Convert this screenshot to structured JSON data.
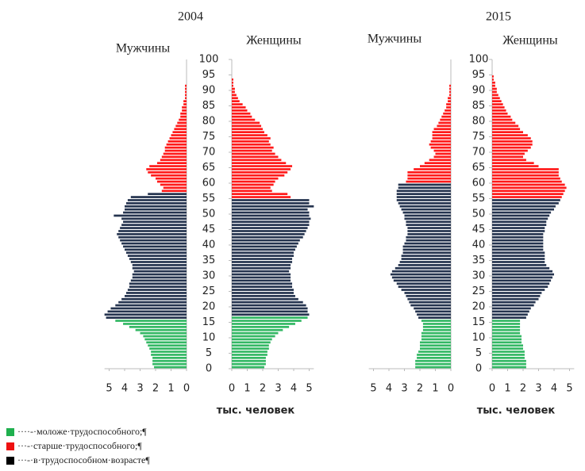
{
  "legend": [
    {
      "label": "····-·моложе·трудоспособного;¶",
      "color": "#1fb04e"
    },
    {
      "label": "···-·старше·трудоспособного;¶",
      "color": "#ee1111"
    },
    {
      "label": "···-·в·трудоспособном·возрасте¶",
      "color": "#000000"
    }
  ],
  "chart_data": [
    {
      "type": "pyramid",
      "title": "2004",
      "xlabel": "тыс. человек",
      "colors": [
        "#33b864",
        "#ff1a1a",
        "#25344f"
      ],
      "ylim": [
        0,
        100
      ],
      "yticks": [
        0,
        5,
        10,
        15,
        20,
        25,
        30,
        35,
        40,
        45,
        50,
        55,
        60,
        65,
        70,
        75,
        80,
        85,
        90,
        95,
        100
      ],
      "xlim": [
        0,
        5.3
      ],
      "xticks": [
        0,
        1,
        2,
        3,
        4,
        5
      ],
      "ages": [
        0,
        1,
        2,
        3,
        4,
        5,
        6,
        7,
        8,
        9,
        10,
        11,
        12,
        13,
        14,
        15,
        16,
        17,
        18,
        19,
        20,
        21,
        22,
        23,
        24,
        25,
        26,
        27,
        28,
        29,
        30,
        31,
        32,
        33,
        34,
        35,
        36,
        37,
        38,
        39,
        40,
        41,
        42,
        43,
        44,
        45,
        46,
        47,
        48,
        49,
        50,
        51,
        52,
        53,
        54,
        55,
        56,
        57,
        58,
        59,
        60,
        61,
        62,
        63,
        64,
        65,
        66,
        67,
        68,
        69,
        70,
        71,
        72,
        73,
        74,
        75,
        76,
        77,
        78,
        79,
        80,
        81,
        82,
        83,
        84,
        85,
        86,
        87,
        88,
        89,
        90,
        91,
        92,
        93,
        94
      ],
      "series": [
        {
          "name": "Мужчины",
          "working_age": [
            16,
            56
          ],
          "values": [
            2.1,
            2.2,
            2.2,
            2.2,
            2.3,
            2.3,
            2.4,
            2.5,
            2.6,
            2.7,
            2.8,
            3.0,
            3.3,
            3.7,
            4.1,
            4.6,
            5.2,
            5.3,
            5.1,
            4.9,
            4.6,
            4.4,
            4.2,
            4.0,
            3.9,
            3.8,
            3.7,
            3.7,
            3.6,
            3.5,
            3.5,
            3.4,
            3.5,
            3.5,
            3.6,
            3.7,
            3.8,
            3.9,
            4.0,
            4.1,
            4.2,
            4.3,
            4.4,
            4.5,
            4.4,
            4.3,
            4.2,
            4.1,
            4.2,
            4.7,
            4.1,
            4.0,
            4.0,
            3.9,
            3.8,
            3.6,
            2.5,
            1.6,
            1.5,
            1.7,
            1.9,
            2.0,
            2.3,
            2.5,
            2.6,
            2.4,
            1.9,
            1.7,
            1.6,
            1.5,
            1.4,
            1.4,
            1.3,
            1.2,
            1.1,
            1.0,
            0.9,
            0.8,
            0.7,
            0.6,
            0.5,
            0.4,
            0.4,
            0.3,
            0.3,
            0.2,
            0.2,
            0.1,
            0.1,
            0.1,
            0.1,
            0.1,
            0,
            0,
            0
          ]
        },
        {
          "name": "Женщины",
          "working_age": [
            17,
            54
          ],
          "values": [
            2.1,
            2.2,
            2.2,
            2.2,
            2.3,
            2.3,
            2.4,
            2.4,
            2.5,
            2.6,
            2.8,
            3.0,
            3.3,
            3.7,
            4.1,
            4.5,
            4.9,
            5.0,
            4.9,
            4.9,
            4.8,
            4.6,
            4.3,
            4.1,
            4.0,
            4.0,
            3.9,
            3.9,
            3.8,
            3.8,
            3.8,
            3.7,
            3.8,
            3.8,
            3.9,
            3.9,
            4.0,
            4.0,
            4.1,
            4.2,
            4.3,
            4.4,
            4.6,
            4.7,
            4.8,
            4.9,
            5.0,
            5.0,
            5.1,
            5.0,
            5.0,
            4.9,
            5.3,
            5.0,
            5.0,
            3.8,
            3.6,
            2.6,
            2.5,
            2.7,
            2.8,
            3.0,
            3.4,
            3.6,
            3.8,
            3.9,
            3.5,
            3.2,
            3.0,
            2.8,
            2.6,
            2.7,
            2.5,
            2.4,
            2.5,
            2.3,
            2.1,
            2.0,
            1.9,
            1.8,
            1.5,
            1.3,
            1.2,
            1.0,
            0.9,
            0.7,
            0.5,
            0.4,
            0.3,
            0.2,
            0.2,
            0.1,
            0.1,
            0.1,
            0
          ]
        }
      ]
    },
    {
      "type": "pyramid",
      "title": "2015",
      "xlabel": "тыс. человек",
      "colors": [
        "#33b864",
        "#ff1a1a",
        "#25344f"
      ],
      "ylim": [
        0,
        100
      ],
      "yticks": [
        0,
        5,
        10,
        15,
        20,
        25,
        30,
        35,
        40,
        45,
        50,
        55,
        60,
        65,
        70,
        75,
        80,
        85,
        90,
        95,
        100
      ],
      "xlim": [
        0,
        5.3
      ],
      "xticks": [
        0,
        1,
        2,
        3,
        4,
        5
      ],
      "ages": [
        0,
        1,
        2,
        3,
        4,
        5,
        6,
        7,
        8,
        9,
        10,
        11,
        12,
        13,
        14,
        15,
        16,
        17,
        18,
        19,
        20,
        21,
        22,
        23,
        24,
        25,
        26,
        27,
        28,
        29,
        30,
        31,
        32,
        33,
        34,
        35,
        36,
        37,
        38,
        39,
        40,
        41,
        42,
        43,
        44,
        45,
        46,
        47,
        48,
        49,
        50,
        51,
        52,
        53,
        54,
        55,
        56,
        57,
        58,
        59,
        60,
        61,
        62,
        63,
        64,
        65,
        66,
        67,
        68,
        69,
        70,
        71,
        72,
        73,
        74,
        75,
        76,
        77,
        78,
        79,
        80,
        81,
        82,
        83,
        84,
        85,
        86,
        87,
        88,
        89,
        90,
        91,
        92,
        93,
        94
      ],
      "series": [
        {
          "name": "Мужчины",
          "working_age": [
            16,
            59
          ],
          "values": [
            2.3,
            2.3,
            2.3,
            2.2,
            2.2,
            2.1,
            2.0,
            2.0,
            2.0,
            1.9,
            1.9,
            1.9,
            1.8,
            1.8,
            1.8,
            1.9,
            2.1,
            2.2,
            2.3,
            2.4,
            2.6,
            2.7,
            2.8,
            2.9,
            3.0,
            3.2,
            3.4,
            3.5,
            3.7,
            3.8,
            3.9,
            3.8,
            3.6,
            3.4,
            3.3,
            3.2,
            3.2,
            3.1,
            3.1,
            3.1,
            3.0,
            2.9,
            2.9,
            2.8,
            2.8,
            2.8,
            2.9,
            2.9,
            3.0,
            3.0,
            3.1,
            3.2,
            3.3,
            3.4,
            3.5,
            3.5,
            3.5,
            3.5,
            3.4,
            3.4,
            2.9,
            2.8,
            2.8,
            2.8,
            2.4,
            2.0,
            1.7,
            1.4,
            1.1,
            1.0,
            1.1,
            1.3,
            1.4,
            1.3,
            1.2,
            1.2,
            1.2,
            1.1,
            0.9,
            0.8,
            0.7,
            0.6,
            0.5,
            0.4,
            0.3,
            0.3,
            0.2,
            0.2,
            0.1,
            0.1,
            0.1,
            0.1,
            0,
            0,
            0
          ]
        },
        {
          "name": "Женщины",
          "working_age": [
            16,
            54
          ],
          "values": [
            2.2,
            2.2,
            2.2,
            2.1,
            2.1,
            2.1,
            2.0,
            2.0,
            1.9,
            1.9,
            1.9,
            1.8,
            1.8,
            1.8,
            1.8,
            1.8,
            2.2,
            2.3,
            2.4,
            2.5,
            2.7,
            2.8,
            3.0,
            3.1,
            3.2,
            3.4,
            3.6,
            3.7,
            3.8,
            3.9,
            4.0,
            3.9,
            3.7,
            3.5,
            3.4,
            3.4,
            3.4,
            3.4,
            3.3,
            3.3,
            3.3,
            3.3,
            3.3,
            3.3,
            3.4,
            3.4,
            3.5,
            3.5,
            3.6,
            3.7,
            3.8,
            4.0,
            4.1,
            4.3,
            4.4,
            4.5,
            4.6,
            4.7,
            4.8,
            4.7,
            4.5,
            4.4,
            4.3,
            4.3,
            4.3,
            3.0,
            2.7,
            2.2,
            2.0,
            2.1,
            2.3,
            2.5,
            2.6,
            2.6,
            2.5,
            2.3,
            2.0,
            1.8,
            1.7,
            1.5,
            1.3,
            1.2,
            1.0,
            0.9,
            0.8,
            0.7,
            0.6,
            0.5,
            0.4,
            0.3,
            0.3,
            0.2,
            0.2,
            0.1,
            0.1
          ]
        }
      ]
    }
  ]
}
